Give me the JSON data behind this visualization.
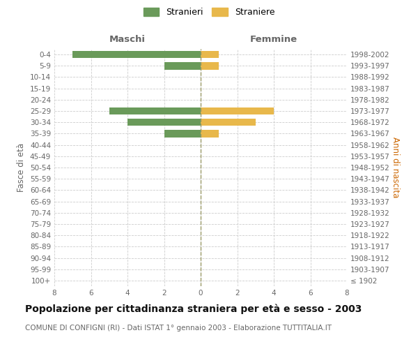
{
  "age_groups": [
    "100+",
    "95-99",
    "90-94",
    "85-89",
    "80-84",
    "75-79",
    "70-74",
    "65-69",
    "60-64",
    "55-59",
    "50-54",
    "45-49",
    "40-44",
    "35-39",
    "30-34",
    "25-29",
    "20-24",
    "15-19",
    "10-14",
    "5-9",
    "0-4"
  ],
  "birth_years": [
    "≤ 1902",
    "1903-1907",
    "1908-1912",
    "1913-1917",
    "1918-1922",
    "1923-1927",
    "1928-1932",
    "1933-1937",
    "1938-1942",
    "1943-1947",
    "1948-1952",
    "1953-1957",
    "1958-1962",
    "1963-1967",
    "1968-1972",
    "1973-1977",
    "1978-1982",
    "1983-1987",
    "1988-1992",
    "1993-1997",
    "1998-2002"
  ],
  "maschi": [
    0,
    0,
    0,
    0,
    0,
    0,
    0,
    0,
    0,
    0,
    0,
    0,
    0,
    2,
    4,
    5,
    0,
    0,
    0,
    2,
    7
  ],
  "femmine": [
    0,
    0,
    0,
    0,
    0,
    0,
    0,
    0,
    0,
    0,
    0,
    0,
    0,
    1,
    3,
    4,
    0,
    0,
    0,
    1,
    1
  ],
  "color_maschi": "#6a9a5a",
  "color_femmine": "#e8b84b",
  "xlim": 8,
  "title": "Popolazione per cittadinanza straniera per età e sesso - 2003",
  "subtitle": "COMUNE DI CONFIGNI (RI) - Dati ISTAT 1° gennaio 2003 - Elaborazione TUTTITALIA.IT",
  "ylabel_left": "Fasce di età",
  "ylabel_right": "Anni di nascita",
  "label_maschi": "Stranieri",
  "label_femmine": "Straniere",
  "header_maschi": "Maschi",
  "header_femmine": "Femmine",
  "background_color": "#ffffff",
  "grid_color": "#cccccc",
  "vline_color": "#999966",
  "tick_color": "#666666",
  "right_label_color": "#cc6600",
  "title_fontsize": 10,
  "subtitle_fontsize": 7.5,
  "axis_label_fontsize": 8.5,
  "tick_fontsize": 7.5,
  "header_fontsize": 9.5,
  "legend_fontsize": 9
}
